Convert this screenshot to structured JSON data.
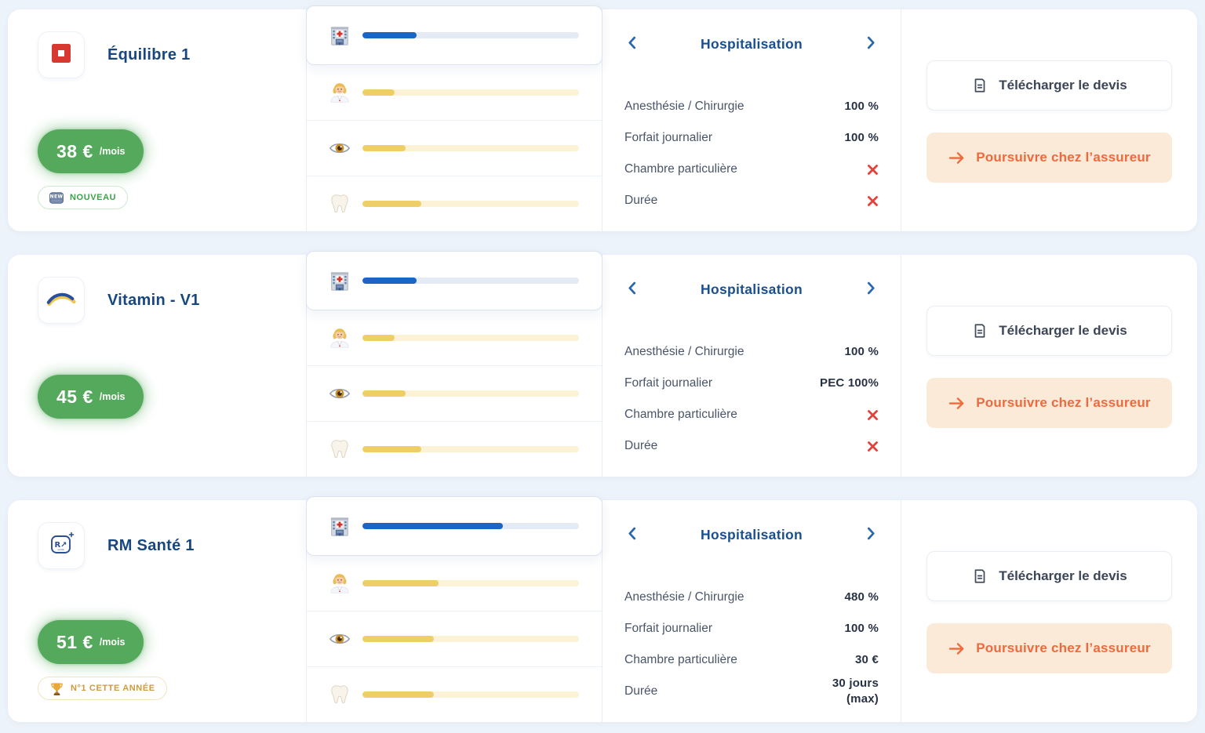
{
  "labels": {
    "per_month": "/mois",
    "category_title": "Hospitalisation",
    "download_quote": "Télécharger le devis",
    "continue_insurer": "Poursuivre chez l’assureur",
    "download_icon": "document-icon",
    "continue_icon": "arrow-right-icon",
    "prev_icon": "chevron-left-icon",
    "next_icon": "chevron-right-icon"
  },
  "colors": {
    "page_background": "#edf3fa",
    "price_green": "#55a95c",
    "bar_blue": "#1a66c2",
    "bar_yellow": "#eecf67",
    "title_navy": "#17477e",
    "section_blue": "#1a4f8e",
    "accent_orange": "#ee6a3d",
    "continue_bg": "#fcead9",
    "cross_red": "#e2423b",
    "badge_green": "#3da14b",
    "badge_gold": "#cf9a3d"
  },
  "offers": [
    {
      "name": "Équilibre 1",
      "logo": "stop-square-logo",
      "price": "38 €",
      "badge": {
        "icon": "new-icon",
        "text": "NOUVEAU",
        "theme": "green"
      },
      "bars": [
        {
          "icon": "hospital-icon",
          "percent": 25,
          "theme": "blue",
          "selected": true
        },
        {
          "icon": "doctor-icon",
          "percent": 15,
          "theme": "yellow",
          "selected": false
        },
        {
          "icon": "eye-icon",
          "percent": 20,
          "theme": "yellow",
          "selected": false
        },
        {
          "icon": "tooth-icon",
          "percent": 27,
          "theme": "yellow",
          "selected": false
        }
      ],
      "details": [
        {
          "label": "Anesthésie / Chirurgie",
          "value": "100 %"
        },
        {
          "label": "Forfait journalier",
          "value": "100 %"
        },
        {
          "label": "Chambre particulière",
          "icon": "cross-icon"
        },
        {
          "label": "Durée",
          "icon": "cross-icon"
        }
      ]
    },
    {
      "name": "Vitamin - V1",
      "logo": "arc-logo",
      "price": "45 €",
      "badge": null,
      "bars": [
        {
          "icon": "hospital-icon",
          "percent": 25,
          "theme": "blue",
          "selected": true
        },
        {
          "icon": "doctor-icon",
          "percent": 15,
          "theme": "yellow",
          "selected": false
        },
        {
          "icon": "eye-icon",
          "percent": 20,
          "theme": "yellow",
          "selected": false
        },
        {
          "icon": "tooth-icon",
          "percent": 27,
          "theme": "yellow",
          "selected": false
        }
      ],
      "details": [
        {
          "label": "Anesthésie / Chirurgie",
          "value": "100 %"
        },
        {
          "label": "Forfait journalier",
          "value": "PEC 100%"
        },
        {
          "label": "Chambre particulière",
          "icon": "cross-icon"
        },
        {
          "label": "Durée",
          "icon": "cross-icon"
        }
      ]
    },
    {
      "name": "RM Santé 1",
      "logo": "rm-logo",
      "price": "51 €",
      "badge": {
        "icon": "trophy-icon",
        "text": "N°1 CETTE ANNÉE",
        "theme": "gold"
      },
      "bars": [
        {
          "icon": "hospital-icon",
          "percent": 65,
          "theme": "blue",
          "selected": true
        },
        {
          "icon": "doctor-icon",
          "percent": 35,
          "theme": "yellow",
          "selected": false
        },
        {
          "icon": "eye-icon",
          "percent": 33,
          "theme": "yellow",
          "selected": false
        },
        {
          "icon": "tooth-icon",
          "percent": 33,
          "theme": "yellow",
          "selected": false
        }
      ],
      "details": [
        {
          "label": "Anesthésie / Chirurgie",
          "value": "480 %"
        },
        {
          "label": "Forfait journalier",
          "value": "100 %"
        },
        {
          "label": "Chambre particulière",
          "value": "30 €"
        },
        {
          "label": "Durée",
          "value": "30 jours (max)"
        }
      ]
    }
  ]
}
